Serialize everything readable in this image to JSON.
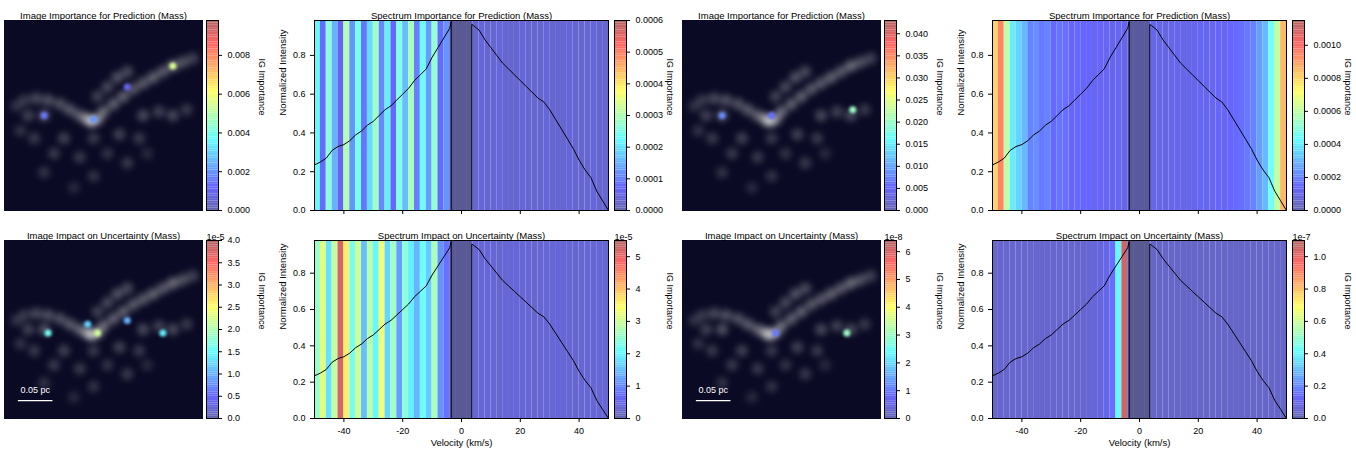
{
  "spectrum": {
    "x": [
      -50,
      -48,
      -46,
      -44,
      -42,
      -40,
      -38,
      -36,
      -34,
      -32,
      -30,
      -28,
      -26,
      -24,
      -22,
      -20,
      -18,
      -16,
      -14,
      -12,
      -10,
      -8,
      -6,
      -4,
      -3.5,
      -3.5,
      3.5,
      3.5,
      4,
      6,
      8,
      10,
      12,
      14,
      16,
      18,
      20,
      22,
      24,
      26,
      28,
      30,
      32,
      34,
      36,
      38,
      40,
      42,
      44,
      46,
      48,
      50
    ],
    "values": [
      0.235,
      0.25,
      0.27,
      0.31,
      0.33,
      0.34,
      0.36,
      0.39,
      0.41,
      0.44,
      0.46,
      0.49,
      0.52,
      0.54,
      0.57,
      0.6,
      0.63,
      0.67,
      0.7,
      0.73,
      0.79,
      0.84,
      0.89,
      0.94,
      0.975,
      0,
      0,
      0.96,
      0.955,
      0.93,
      0.88,
      0.84,
      0.8,
      0.76,
      0.73,
      0.7,
      0.67,
      0.64,
      0.61,
      0.58,
      0.56,
      0.52,
      0.47,
      0.42,
      0.37,
      0.32,
      0.26,
      0.21,
      0.17,
      0.1,
      0.05,
      0
    ],
    "mask": [
      -3.5,
      3.5
    ]
  },
  "image_structure": [
    [
      0.44,
      0.53,
      1.0
    ],
    [
      0.42,
      0.52,
      0.8
    ],
    [
      0.47,
      0.52,
      0.7
    ],
    [
      0.5,
      0.48,
      0.6
    ],
    [
      0.55,
      0.44,
      0.55
    ],
    [
      0.6,
      0.4,
      0.55
    ],
    [
      0.65,
      0.36,
      0.5
    ],
    [
      0.7,
      0.33,
      0.5
    ],
    [
      0.75,
      0.3,
      0.55
    ],
    [
      0.8,
      0.27,
      0.5
    ],
    [
      0.85,
      0.24,
      0.6
    ],
    [
      0.9,
      0.22,
      0.45
    ],
    [
      0.95,
      0.2,
      0.35
    ],
    [
      0.47,
      0.4,
      0.35
    ],
    [
      0.52,
      0.35,
      0.4
    ],
    [
      0.57,
      0.3,
      0.45
    ],
    [
      0.62,
      0.27,
      0.4
    ],
    [
      0.7,
      0.5,
      0.4
    ],
    [
      0.78,
      0.48,
      0.35
    ],
    [
      0.85,
      0.5,
      0.4
    ],
    [
      0.92,
      0.47,
      0.3
    ],
    [
      0.38,
      0.5,
      0.55
    ],
    [
      0.33,
      0.47,
      0.5
    ],
    [
      0.28,
      0.44,
      0.45
    ],
    [
      0.22,
      0.42,
      0.45
    ],
    [
      0.16,
      0.41,
      0.4
    ],
    [
      0.1,
      0.42,
      0.3
    ],
    [
      0.2,
      0.5,
      0.45
    ],
    [
      0.12,
      0.5,
      0.35
    ],
    [
      0.06,
      0.45,
      0.25
    ],
    [
      0.3,
      0.62,
      0.35
    ],
    [
      0.45,
      0.62,
      0.3
    ],
    [
      0.58,
      0.6,
      0.35
    ],
    [
      0.68,
      0.62,
      0.3
    ],
    [
      0.25,
      0.7,
      0.3
    ],
    [
      0.38,
      0.72,
      0.3
    ],
    [
      0.52,
      0.7,
      0.25
    ],
    [
      0.62,
      0.75,
      0.3
    ],
    [
      0.2,
      0.8,
      0.25
    ],
    [
      0.45,
      0.82,
      0.25
    ],
    [
      0.35,
      0.88,
      0.2
    ],
    [
      0.15,
      0.62,
      0.3
    ],
    [
      0.08,
      0.58,
      0.25
    ],
    [
      0.72,
      0.7,
      0.2
    ]
  ],
  "chart_data": [
    {
      "type": "image",
      "title": "Image Importance for Prediction (Mass)",
      "tick_labels": false,
      "hotspots": [
        [
          0.85,
          0.24,
          0.0055
        ],
        [
          0.45,
          0.52,
          0.002
        ],
        [
          0.2,
          0.5,
          0.0015
        ],
        [
          0.62,
          0.35,
          0.001
        ]
      ],
      "colorbar": {
        "label": "IG Importance",
        "range": [
          0,
          0.0098
        ],
        "ticks": [
          {
            "value": 0,
            "label": "0.000"
          },
          0.002,
          0.004,
          0.006,
          0.008
        ]
      }
    },
    {
      "type": "spectrum",
      "title": "Spectrum Importance for Prediction (Mass)",
      "ylabel": "Normalized Intensity",
      "tick_labels": "y",
      "xlim": [
        -50,
        50
      ],
      "xticks": [
        -40,
        -20,
        0,
        20,
        40
      ],
      "ylim": [
        0,
        0.98
      ],
      "yticks": [
        {
          "value": 0,
          "label": "0.0"
        },
        0.2,
        0.4,
        0.6,
        0.8
      ],
      "velocity_bins": [
        -50,
        -48,
        -46,
        -44,
        -42,
        -40,
        -38,
        -36,
        -34,
        -32,
        -30,
        -28,
        -26,
        -24,
        -22,
        -20,
        -18,
        -16,
        -14,
        -12,
        -10,
        -8,
        -6,
        -4,
        -2,
        0,
        2,
        4,
        6,
        8,
        10,
        12,
        14,
        16,
        18,
        20,
        22,
        24,
        26,
        28,
        30,
        32,
        34,
        36,
        38,
        40,
        42,
        44,
        46,
        48,
        50
      ],
      "importance": [
        0.00022,
        8e-05,
        0.00026,
        0.00015,
        6e-05,
        0.0003,
        0.00012,
        0.00024,
        9e-05,
        0.00019,
        0.00028,
        0.00011,
        0.00021,
        7e-05,
        0.00025,
        0.00016,
        0.00029,
        0.0001,
        0.00023,
        0.00013,
        0.00027,
        8e-05,
        0.00012,
        3e-05,
        3e-05,
        3e-05,
        3e-05,
        3e-05,
        4e-05,
        3e-05,
        3e-05,
        4e-05,
        3e-05,
        3e-05,
        3e-05,
        4e-05,
        3e-05,
        3e-05,
        3e-05,
        4e-05,
        3e-05,
        3e-05,
        3e-05,
        4e-05,
        3e-05,
        3e-05,
        3e-05,
        4e-05,
        3e-05,
        3e-05
      ],
      "colorbar": {
        "label": "IG Importance",
        "range": [
          0,
          0.0006
        ],
        "ticks": [
          {
            "value": 0,
            "label": "0.0000"
          },
          0.0001,
          0.0002,
          0.0003,
          0.0004,
          0.0005,
          0.0006
        ]
      }
    },
    {
      "type": "image",
      "title": "Image Importance for Prediction (Mass)",
      "tick_labels": false,
      "hotspots": [
        [
          0.86,
          0.47,
          0.02
        ],
        [
          0.2,
          0.5,
          0.008
        ],
        [
          0.45,
          0.5,
          0.006
        ]
      ],
      "colorbar": {
        "label": "IG Importance",
        "range": [
          0,
          0.043
        ],
        "ticks": [
          {
            "value": 0,
            "label": "0.000"
          },
          0.005,
          {
            "value": 0.01,
            "label": "0.010"
          },
          0.015,
          {
            "value": 0.02,
            "label": "0.020"
          },
          0.025,
          {
            "value": 0.03,
            "label": "0.030"
          },
          0.035,
          {
            "value": 0.04,
            "label": "0.040"
          }
        ]
      }
    },
    {
      "type": "spectrum",
      "title": "Spectrum Importance for Prediction (Mass)",
      "ylabel": "Normalized Intensity",
      "tick_labels": "y",
      "xlim": [
        -50,
        50
      ],
      "xticks": [
        -40,
        -20,
        0,
        20,
        40
      ],
      "ylim": [
        0,
        0.98
      ],
      "yticks": [
        {
          "value": 0,
          "label": "0.0"
        },
        0.2,
        0.4,
        0.6,
        0.8
      ],
      "velocity_bins": [
        -50,
        -48,
        -46,
        -44,
        -42,
        -40,
        -38,
        -36,
        -34,
        -32,
        -30,
        -28,
        -26,
        -24,
        -22,
        -20,
        -18,
        -16,
        -14,
        -12,
        -10,
        -8,
        -6,
        -4,
        -2,
        0,
        2,
        4,
        6,
        8,
        10,
        12,
        14,
        16,
        18,
        20,
        22,
        24,
        26,
        28,
        30,
        32,
        34,
        36,
        38,
        40,
        42,
        44,
        46,
        48,
        50
      ],
      "importance": [
        0.0008,
        0.00095,
        0.0006,
        0.0004,
        0.00035,
        0.0003,
        0.0002,
        0.00022,
        0.00018,
        0.0002,
        0.00015,
        0.00017,
        0.00016,
        0.00014,
        0.00015,
        0.00013,
        0.00014,
        0.00012,
        0.00013,
        0.00012,
        0.00011,
        0.00012,
        0.0001,
        0.0001,
        0.0001,
        0.0001,
        0.0001,
        0.0001,
        0.0001,
        9e-05,
        0.0001,
        0.00011,
        0.0001,
        0.0001,
        0.00011,
        0.00012,
        0.00011,
        0.00012,
        0.00013,
        0.00012,
        0.00014,
        0.00015,
        0.00016,
        0.00018,
        0.0002,
        0.00025,
        0.0003,
        0.00045,
        0.0006,
        0.00085
      ],
      "colorbar": {
        "label": "IG Importance",
        "range": [
          0,
          0.00115
        ],
        "ticks": [
          {
            "value": 0,
            "label": "0.0000"
          },
          0.0002,
          0.0004,
          0.0006,
          0.0008,
          {
            "value": 0.001,
            "label": "0.0010"
          }
        ]
      }
    },
    {
      "type": "image",
      "title": "Image Impact on Uncertainty (Mass)",
      "tick_labels": false,
      "scale_bar": "0.05 pc",
      "hotspots": [
        [
          0.47,
          0.52,
          2.2
        ],
        [
          0.22,
          0.52,
          1.6
        ],
        [
          0.8,
          0.52,
          1.4
        ],
        [
          0.62,
          0.45,
          1.0
        ],
        [
          0.42,
          0.47,
          1.2
        ]
      ],
      "colorbar": {
        "label": "IG Importance",
        "range": [
          0,
          4.0
        ],
        "scale_label": "1e-5",
        "ticks": [
          {
            "value": 0,
            "label": "0.0"
          },
          0.5,
          {
            "value": 1,
            "label": "1.0"
          },
          1.5,
          {
            "value": 2,
            "label": "2.0"
          },
          2.5,
          {
            "value": 3,
            "label": "3.0"
          },
          3.5,
          {
            "value": 4,
            "label": "4.0"
          }
        ]
      }
    },
    {
      "type": "spectrum",
      "title": "Spectrum Impact on Uncertainty (Mass)",
      "ylabel": "Normalized Intensity",
      "xlabel": "Velocity (km/s)",
      "xlim": [
        -50,
        50
      ],
      "xticks": [
        -40,
        -20,
        0,
        20,
        40
      ],
      "ylim": [
        0,
        0.98
      ],
      "yticks": [
        {
          "value": 0,
          "label": "0.0"
        },
        0.2,
        0.4,
        0.6,
        0.8
      ],
      "velocity_bins": [
        -50,
        -48,
        -46,
        -44,
        -42,
        -40,
        -38,
        -36,
        -34,
        -32,
        -30,
        -28,
        -26,
        -24,
        -22,
        -20,
        -18,
        -16,
        -14,
        -12,
        -10,
        -8,
        -6,
        -4,
        -2,
        0,
        2,
        4,
        6,
        8,
        10,
        12,
        14,
        16,
        18,
        20,
        22,
        24,
        26,
        28,
        30,
        32,
        34,
        36,
        38,
        40,
        42,
        44,
        46,
        48,
        50
      ],
      "importance": [
        2.5,
        3.2,
        1.8,
        2.9,
        5.2,
        3.6,
        2.2,
        3.0,
        1.5,
        2.8,
        2.0,
        3.3,
        1.7,
        2.6,
        1.2,
        2.4,
        1.9,
        1.4,
        2.1,
        1.6,
        2.7,
        1.1,
        0.8,
        0.3,
        0.3,
        0.3,
        0.3,
        0.3,
        0.3,
        0.35,
        0.3,
        0.25,
        0.3,
        0.3,
        0.35,
        0.3,
        0.3,
        0.25,
        0.3,
        0.3,
        0.3,
        0.35,
        0.3,
        0.3,
        0.25,
        0.3,
        0.3,
        0.3,
        0.3,
        0.3
      ],
      "colorbar": {
        "label": "IG Importance",
        "range": [
          0,
          5.5
        ],
        "scale_label": "1e-5",
        "ticks": [
          0,
          1,
          2,
          3,
          4,
          5
        ]
      }
    },
    {
      "type": "image",
      "title": "Image Impact on Uncertainty (Mass)",
      "tick_labels": false,
      "scale_bar": "0.05 pc",
      "hotspots": [
        [
          0.83,
          0.52,
          3.0
        ],
        [
          0.47,
          0.52,
          1.0
        ]
      ],
      "colorbar": {
        "label": "IG Importance",
        "range": [
          0,
          6.4
        ],
        "scale_label": "1e-8",
        "ticks": [
          0,
          1,
          2,
          3,
          4,
          5,
          6
        ]
      }
    },
    {
      "type": "spectrum",
      "title": "Spectrum Impact on Uncertainty (Mass)",
      "ylabel": "Normalized Intensity",
      "xlabel": "Velocity (km/s)",
      "xlim": [
        -50,
        50
      ],
      "xticks": [
        -40,
        -20,
        0,
        20,
        40
      ],
      "ylim": [
        0,
        0.98
      ],
      "yticks": [
        {
          "value": 0,
          "label": "0.0"
        },
        0.2,
        0.4,
        0.6,
        0.8
      ],
      "velocity_bins": [
        -50,
        -48,
        -46,
        -44,
        -42,
        -40,
        -38,
        -36,
        -34,
        -32,
        -30,
        -28,
        -26,
        -24,
        -22,
        -20,
        -18,
        -16,
        -14,
        -12,
        -10,
        -8,
        -6,
        -4,
        -2,
        0,
        2,
        4,
        6,
        8,
        10,
        12,
        14,
        16,
        18,
        20,
        22,
        24,
        26,
        28,
        30,
        32,
        34,
        36,
        38,
        40,
        42,
        44,
        46,
        48,
        50
      ],
      "importance": [
        0.05,
        0.05,
        0.05,
        0.05,
        0.05,
        0.05,
        0.05,
        0.05,
        0.05,
        0.05,
        0.05,
        0.05,
        0.05,
        0.05,
        0.05,
        0.05,
        0.06,
        0.07,
        0.08,
        0.1,
        0.15,
        0.4,
        1.05,
        0.05,
        0.05,
        0.05,
        0.05,
        0.04,
        0.04,
        0.04,
        0.04,
        0.04,
        0.04,
        0.04,
        0.04,
        0.04,
        0.04,
        0.04,
        0.04,
        0.04,
        0.04,
        0.04,
        0.04,
        0.04,
        0.04,
        0.04,
        0.04,
        0.04,
        0.04,
        0.04
      ],
      "colorbar": {
        "label": "IG Importance",
        "range": [
          0,
          1.1
        ],
        "scale_label": "1e-7",
        "ticks": [
          {
            "value": 0,
            "label": "0.0"
          },
          0.2,
          0.4,
          0.6,
          0.8,
          {
            "value": 1,
            "label": "1.0"
          }
        ]
      }
    }
  ]
}
